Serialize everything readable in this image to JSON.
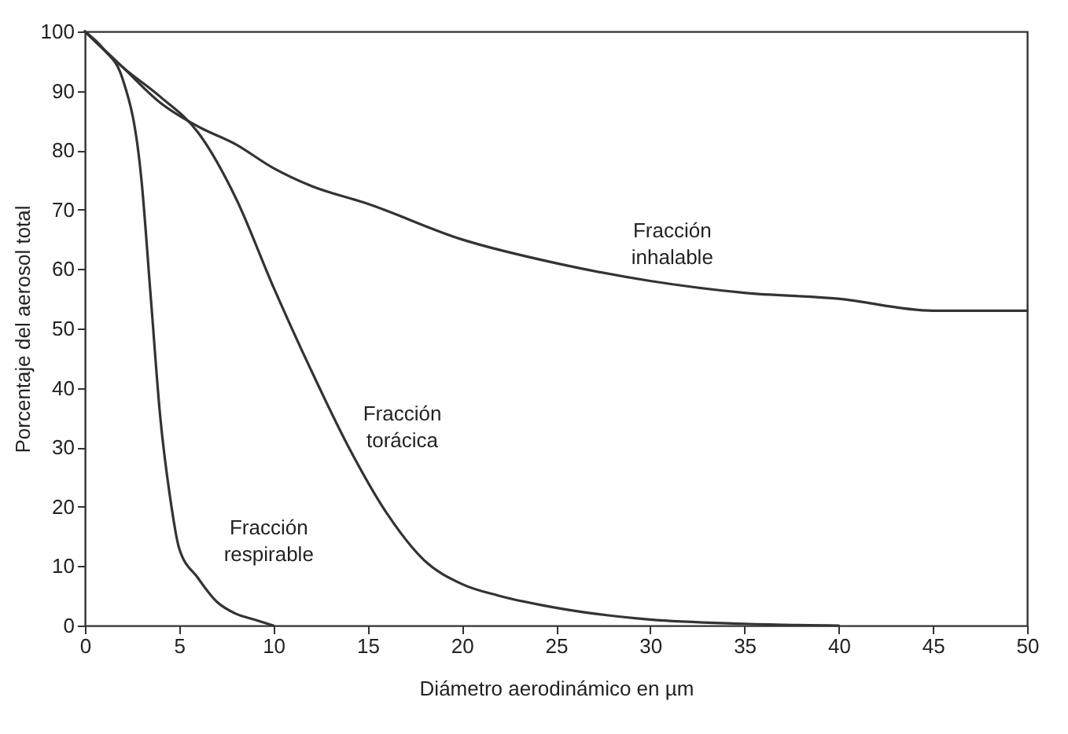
{
  "chart_data": {
    "type": "line",
    "xlabel": "Diámetro aerodinámico en µm",
    "ylabel": "Porcentaje del aerosol total",
    "xlim": [
      0,
      50
    ],
    "ylim": [
      0,
      100
    ],
    "xticks": [
      0,
      5,
      10,
      15,
      20,
      25,
      30,
      35,
      40,
      45,
      50
    ],
    "yticks": [
      0,
      10,
      20,
      30,
      40,
      50,
      60,
      70,
      80,
      90,
      100
    ],
    "grid": false,
    "marker": "none",
    "line_style": "solid",
    "series": [
      {
        "name": "Fracción\ninhalable",
        "color": "#333333",
        "x": [
          0,
          2,
          4,
          6,
          8,
          10,
          12,
          15,
          20,
          25,
          30,
          35,
          40,
          45,
          50
        ],
        "values": [
          100,
          94,
          88,
          84,
          81,
          77,
          74,
          71,
          65,
          61,
          58,
          56,
          55,
          53,
          53
        ]
      },
      {
        "name": "Fracción\ntorácica",
        "color": "#333333",
        "x": [
          0,
          2,
          4,
          6,
          8,
          10,
          12,
          14,
          16,
          18,
          20,
          22,
          25,
          30,
          35,
          40
        ],
        "values": [
          100,
          94,
          89,
          83,
          72,
          57,
          43,
          30,
          19,
          11,
          7,
          5,
          3,
          1,
          0.3,
          0
        ]
      },
      {
        "name": "Fracción\nrespirable",
        "color": "#333333",
        "x": [
          0,
          1,
          2,
          3,
          3.5,
          4,
          4.5,
          5,
          6,
          7,
          8,
          9,
          10
        ],
        "values": [
          100,
          97,
          92,
          75,
          55,
          35,
          22,
          13,
          8,
          4,
          2,
          1,
          0
        ]
      }
    ]
  }
}
